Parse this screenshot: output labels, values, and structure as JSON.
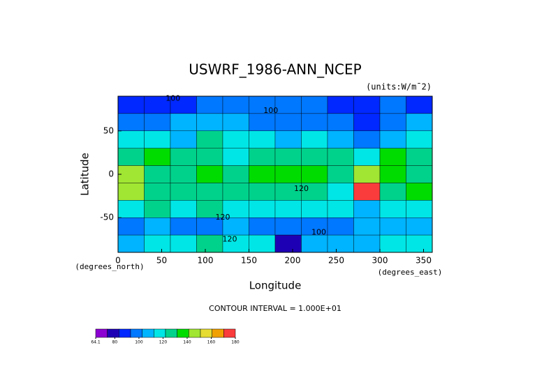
{
  "chart_data": {
    "type": "contour",
    "title": "USWRF_1986-ANN_NCEP",
    "subtitle": "(units:W/m¯2)",
    "xlabel": "Longitude",
    "ylabel": "Latitude",
    "xunit": "(degrees_east)",
    "yunit": "(degrees_north)",
    "note": "CONTOUR INTERVAL = 1.000E+01",
    "xlim": [
      0,
      360
    ],
    "ylim": [
      -90,
      90
    ],
    "xticks": [
      0,
      50,
      100,
      150,
      200,
      250,
      300,
      350
    ],
    "yticks": [
      -50,
      0,
      50
    ],
    "lon": [
      15,
      45,
      75,
      105,
      135,
      165,
      195,
      225,
      255,
      285,
      315,
      345
    ],
    "lat": [
      80,
      60,
      40,
      20,
      0,
      -20,
      -40,
      -60,
      -80
    ],
    "z": [
      [
        90,
        85,
        90,
        95,
        100,
        100,
        100,
        95,
        90,
        85,
        95,
        90
      ],
      [
        100,
        95,
        105,
        110,
        105,
        100,
        95,
        100,
        95,
        85,
        100,
        105
      ],
      [
        115,
        120,
        110,
        125,
        115,
        120,
        110,
        115,
        105,
        100,
        110,
        115
      ],
      [
        130,
        135,
        125,
        130,
        120,
        125,
        125,
        130,
        125,
        120,
        135,
        130
      ],
      [
        150,
        130,
        130,
        140,
        130,
        135,
        140,
        140,
        130,
        150,
        135,
        130
      ],
      [
        145,
        130,
        125,
        130,
        125,
        130,
        130,
        125,
        120,
        175,
        130,
        140
      ],
      [
        120,
        125,
        120,
        125,
        120,
        115,
        120,
        120,
        115,
        110,
        120,
        120
      ],
      [
        100,
        105,
        100,
        95,
        105,
        100,
        100,
        95,
        100,
        105,
        110,
        105
      ],
      [
        110,
        115,
        120,
        125,
        120,
        120,
        80,
        110,
        105,
        110,
        115,
        120
      ]
    ],
    "contour_labels": [
      {
        "value": 100,
        "x": 63,
        "y": 87
      },
      {
        "value": 100,
        "x": 175,
        "y": 73
      },
      {
        "value": 120,
        "x": 210,
        "y": -17
      },
      {
        "value": 120,
        "x": 120,
        "y": -50
      },
      {
        "value": 100,
        "x": 230,
        "y": -67
      },
      {
        "value": 120,
        "x": 128,
        "y": -75
      }
    ],
    "colorbar": {
      "ticks": [
        64.1,
        80,
        100,
        120,
        140,
        160,
        180
      ],
      "colors": [
        "#8c00d2",
        "#1e00b4",
        "#0028ff",
        "#0078ff",
        "#00b4ff",
        "#00e6e6",
        "#00d28c",
        "#00dc00",
        "#a0e632",
        "#e6dc32",
        "#f0a000",
        "#fa3c3c"
      ]
    }
  }
}
